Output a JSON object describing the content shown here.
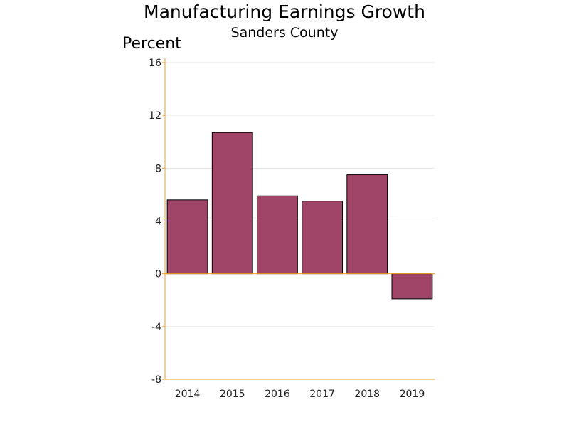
{
  "chart_data": {
    "type": "bar",
    "title": "Manufacturing Earnings Growth",
    "subtitle": "Sanders County",
    "ylabel": "Percent",
    "xlabel": "",
    "categories": [
      "2014",
      "2015",
      "2016",
      "2017",
      "2018",
      "2019"
    ],
    "values": [
      5.6,
      10.7,
      5.9,
      5.5,
      7.5,
      -1.9
    ],
    "ylim": [
      -8,
      16
    ],
    "yticks": [
      -8,
      -4,
      0,
      4,
      8,
      12,
      16
    ],
    "grid": true,
    "legend": "none",
    "colors": {
      "bar": "#a04468",
      "axis": "#f0a020",
      "grid": "#e4e4e4"
    }
  }
}
